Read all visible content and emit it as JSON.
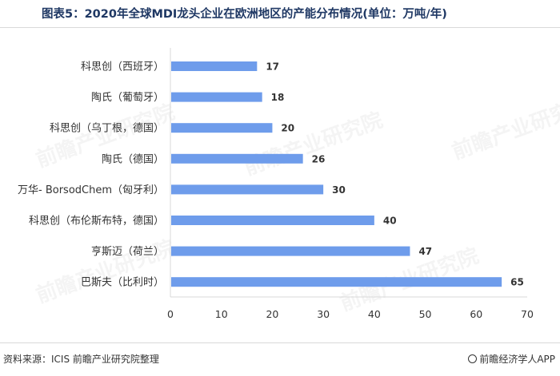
{
  "title": "图表5：2020年全球MDI龙头企业在欧洲地区的产能分布情况(单位：万吨/年)",
  "source": "资料来源：ICIS 前瞻产业研究院整理",
  "brand": "前瞻经济学人APP",
  "brand_icon": "brand-logo-icon",
  "watermark": "前瞻产业研究院",
  "colors": {
    "bar": "#6e9ceb",
    "title": "#1f3864"
  },
  "chart_data": {
    "type": "bar",
    "orientation": "horizontal",
    "categories": [
      "科思创（西班牙）",
      "陶氏（葡萄牙）",
      "科思创（乌丁根，德国）",
      "陶氏（德国）",
      "万华- BorsodChem（匈牙利）",
      "科思创（布伦斯布特，德国）",
      "亨斯迈（荷兰）",
      "巴斯夫（比利时）"
    ],
    "values": [
      17,
      18,
      20,
      26,
      30,
      40,
      47,
      65
    ],
    "xlim": [
      0,
      70
    ],
    "xticks": [
      0,
      10,
      20,
      30,
      40,
      50,
      60,
      70
    ],
    "data_labels": true,
    "grid": false,
    "title": "图表5：2020年全球MDI龙头企业在欧洲地区的产能分布情况(单位：万吨/年)",
    "xlabel": "",
    "ylabel": ""
  }
}
